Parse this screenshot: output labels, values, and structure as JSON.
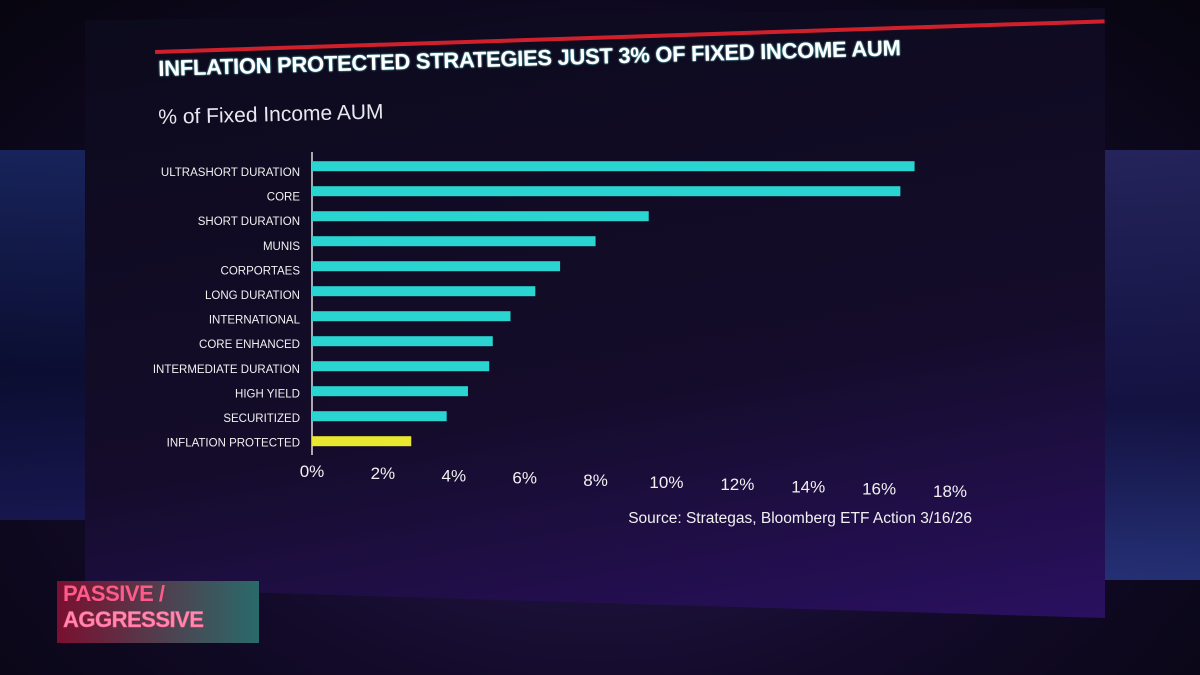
{
  "broadcast": {
    "show_logo_line1": "PASSIVE /",
    "show_logo_line2": "AGGRESSIVE"
  },
  "chart_data": {
    "type": "bar",
    "orientation": "horizontal",
    "title": "INFLATION PROTECTED STRATEGIES JUST 3% OF FIXED INCOME AUM",
    "subtitle": "% of Fixed Income AUM",
    "source": "Source: Strategas, Bloomberg ETF Action 3/16/26",
    "categories": [
      "ULTRASHORT DURATION",
      "CORE",
      "SHORT DURATION",
      "MUNIS",
      "CORPORTAES",
      "LONG DURATION",
      "INTERNATIONAL",
      "CORE ENHANCED",
      "INTERMEDIATE DURATION",
      "HIGH YIELD",
      "SECURITIZED",
      "INFLATION PROTECTED"
    ],
    "values": [
      17.0,
      16.6,
      9.5,
      8.0,
      7.0,
      6.3,
      5.6,
      5.1,
      5.0,
      4.4,
      3.8,
      2.8
    ],
    "colors": {
      "default": "#2ad4d0",
      "highlight": "#e8e830"
    },
    "highlight_index": 11,
    "xlim": [
      0,
      18
    ],
    "x_ticks": [
      "0%",
      "2%",
      "4%",
      "6%",
      "8%",
      "10%",
      "12%",
      "14%",
      "16%",
      "18%"
    ],
    "grid": false,
    "legend": "none"
  }
}
